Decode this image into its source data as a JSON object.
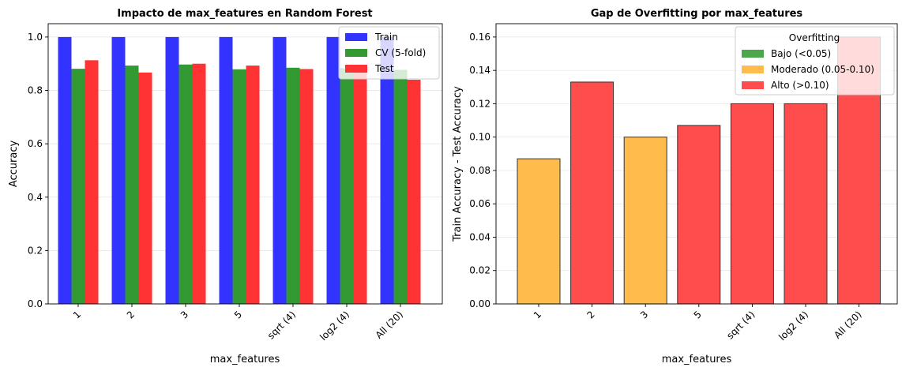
{
  "chart_data": [
    {
      "type": "bar",
      "title": "Impacto de max_features en Random Forest",
      "xlabel": "max_features",
      "ylabel": "Accuracy",
      "categories": [
        "1",
        "2",
        "3",
        "5",
        "sqrt (4)",
        "log2 (4)",
        "All (20)"
      ],
      "ylim": [
        0,
        1.05
      ],
      "yticks": [
        0.0,
        0.2,
        0.4,
        0.6,
        0.8,
        1.0
      ],
      "ytick_labels": [
        "0.0",
        "0.2",
        "0.4",
        "0.6",
        "0.8",
        "1.0"
      ],
      "grid": "y",
      "legend": "top-right",
      "series": [
        {
          "name": "Train",
          "color": "#3333ff",
          "values": [
            1.0,
            1.0,
            1.0,
            1.0,
            1.0,
            1.0,
            1.0
          ]
        },
        {
          "name": "CV (5-fold)",
          "color": "#339933",
          "values": [
            0.881,
            0.893,
            0.897,
            0.879,
            0.885,
            0.883,
            0.877
          ]
        },
        {
          "name": "Test",
          "color": "#ff3333",
          "values": [
            0.913,
            0.867,
            0.9,
            0.893,
            0.88,
            0.88,
            0.84
          ]
        }
      ]
    },
    {
      "type": "bar",
      "title": "Gap de Overfitting por max_features",
      "xlabel": "max_features",
      "ylabel": "Train Accuracy - Test Accuracy",
      "categories": [
        "1",
        "2",
        "3",
        "5",
        "sqrt (4)",
        "log2 (4)",
        "All (20)"
      ],
      "values": [
        0.087,
        0.133,
        0.1,
        0.107,
        0.12,
        0.12,
        0.16
      ],
      "value_levels": [
        "medium",
        "high",
        "medium",
        "high",
        "high",
        "high",
        "high"
      ],
      "ylim": [
        0,
        0.168
      ],
      "yticks": [
        0.0,
        0.02,
        0.04,
        0.06,
        0.08,
        0.1,
        0.12,
        0.14,
        0.16
      ],
      "ytick_labels": [
        "0.00",
        "0.02",
        "0.04",
        "0.06",
        "0.08",
        "0.10",
        "0.12",
        "0.14",
        "0.16"
      ],
      "grid": "y",
      "legend": "top-right",
      "legend_title": "Overfitting",
      "legend_entries": [
        {
          "label": "Bajo (<0.05)",
          "color": "#4ca64c",
          "level": "low"
        },
        {
          "label": "Moderado (0.05-0.10)",
          "color": "#ffbb4c",
          "level": "medium"
        },
        {
          "label": "Alto (>0.10)",
          "color": "#ff4c4c",
          "level": "high"
        }
      ]
    }
  ]
}
